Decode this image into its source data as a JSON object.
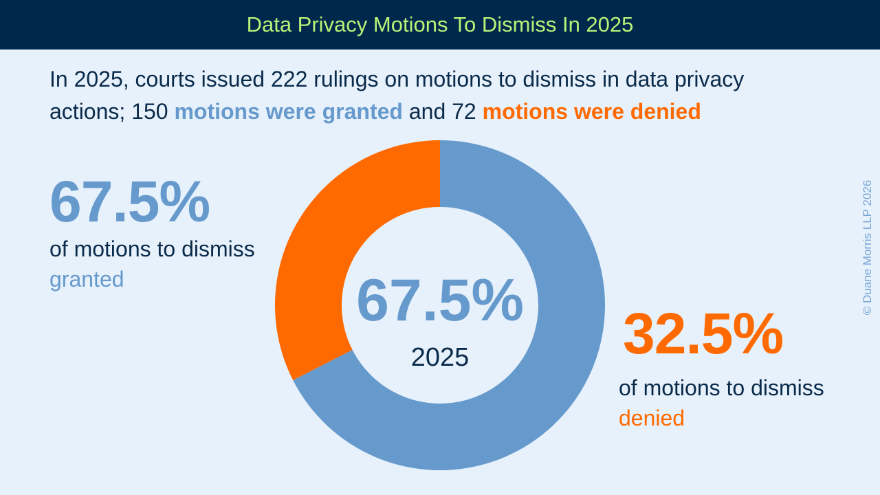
{
  "header": {
    "title": "Data Privacy Motions To Dismiss In 2025"
  },
  "summary": {
    "part1": "In 2025, courts issued 222 rulings on motions to dismiss in data privacy actions; 150 ",
    "granted_phrase": "motions were granted",
    "part2": " and 72 ",
    "denied_phrase": "motions were denied"
  },
  "left_stat": {
    "percent": "67.5%",
    "line1": "of motions to dismiss",
    "line2": "granted"
  },
  "right_stat": {
    "percent": "32.5%",
    "line1": "of motions to dismiss",
    "line2": "denied"
  },
  "copyright": "© Duane Morris LLP 2026",
  "colors": {
    "granted": "#6699cc",
    "denied": "#ff6a00",
    "header_bg": "#00284d",
    "title": "#b8f277",
    "background": "#e6f1fb",
    "text": "#0a2a4a"
  },
  "chart_data": {
    "type": "pie",
    "title": "Data Privacy Motions To Dismiss In 2025",
    "center_value": "67.5%",
    "center_label": "2025",
    "total": 222,
    "slices": [
      {
        "label": "granted",
        "count": 150,
        "percent": 67.5
      },
      {
        "label": "denied",
        "count": 72,
        "percent": 32.5
      }
    ]
  }
}
